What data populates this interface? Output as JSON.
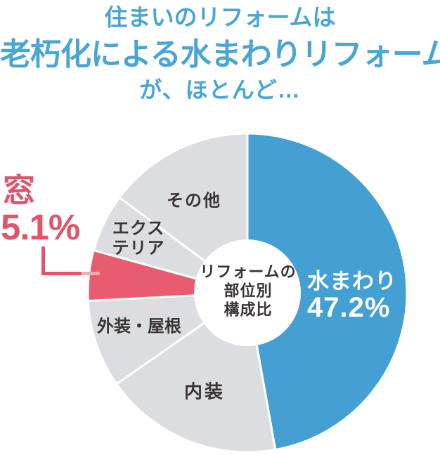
{
  "title": {
    "line1": "住まいのリフォームは",
    "line2": "老朽化による水まわりリフォーム",
    "line3": "が、ほとんど…"
  },
  "center_label": {
    "l1": "リフォームの",
    "l2": "部位別",
    "l3": "構成比"
  },
  "callout": {
    "name": "窓",
    "value": "5.1%"
  },
  "pie_labels": {
    "mizumawari": "水まわり",
    "mizumawari_pct": "47.2%",
    "naiso": "内装",
    "gaiso_yane": "外装・屋根",
    "exterior_l1": "エクス",
    "exterior_l2": "テリア",
    "sonota": "その他"
  },
  "colors": {
    "title_blue": "#4aa5d5",
    "slice_blue": "#449fd3",
    "slice_red": "#e95c6f",
    "slice_gray": "#dcdde1",
    "callout_red": "#e0546c",
    "callout_tip_pink": "#f2aab4",
    "dark_text": "#3b3435",
    "white": "#ffffff"
  },
  "chart_data": {
    "type": "pie",
    "donut": true,
    "title": "リフォームの部位別構成比",
    "start_angle_deg": 0,
    "direction": "clockwise",
    "legend_position": "none",
    "segments": [
      {
        "label": "水まわり",
        "value": 47.2,
        "color": "#449fd3"
      },
      {
        "label": "内装",
        "value": 18.1,
        "color": "#dcdde1"
      },
      {
        "label": "外装・屋根",
        "value": 8.9,
        "color": "#dcdde1"
      },
      {
        "label": "窓",
        "value": 5.1,
        "color": "#e95c6f"
      },
      {
        "label": "エクステリア",
        "value": 5.9,
        "color": "#dcdde1"
      },
      {
        "label": "その他",
        "value": 14.8,
        "color": "#dcdde1"
      }
    ]
  }
}
